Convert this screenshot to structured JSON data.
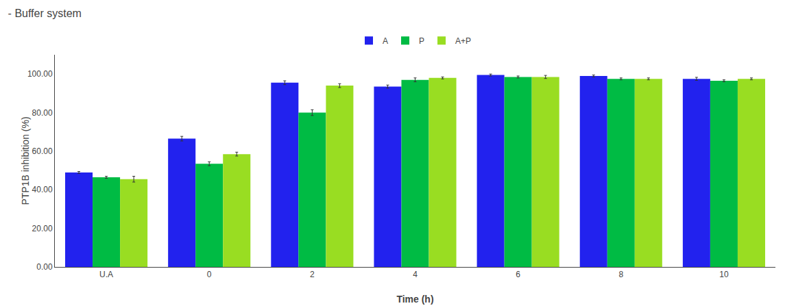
{
  "chart_data": {
    "type": "bar",
    "title": "- Buffer system",
    "xlabel": "Time (h)",
    "ylabel": "PTP1B inhibition (%)",
    "categories": [
      "U.A",
      "0",
      "2",
      "4",
      "6",
      "8",
      "10"
    ],
    "series": [
      {
        "name": "A",
        "color": "#2222ee",
        "values": [
          49.0,
          66.5,
          95.5,
          93.5,
          99.5,
          99.0,
          97.5
        ],
        "errors": [
          0.5,
          1.2,
          1.0,
          0.8,
          0.5,
          0.5,
          0.8
        ]
      },
      {
        "name": "P",
        "color": "#00bb44",
        "values": [
          46.5,
          53.5,
          80.0,
          97.0,
          98.5,
          97.5,
          96.5
        ],
        "errors": [
          0.5,
          1.0,
          1.5,
          1.0,
          0.5,
          0.5,
          0.5
        ]
      },
      {
        "name": "A+P",
        "color": "#99dd22",
        "values": [
          45.5,
          58.5,
          94.0,
          98.0,
          98.5,
          97.5,
          97.5
        ],
        "errors": [
          1.5,
          1.0,
          1.0,
          0.5,
          0.8,
          0.5,
          0.5
        ]
      }
    ],
    "ylim": [
      0,
      110
    ],
    "yticks": [
      {
        "value": 0,
        "label": "0.00"
      },
      {
        "value": 20,
        "label": "20.00"
      },
      {
        "value": 40,
        "label": "40.00"
      },
      {
        "value": 60,
        "label": "60.00"
      },
      {
        "value": 80,
        "label": "80.00"
      },
      {
        "value": 100,
        "label": "100.00"
      }
    ],
    "grid": false,
    "legend": "top"
  }
}
